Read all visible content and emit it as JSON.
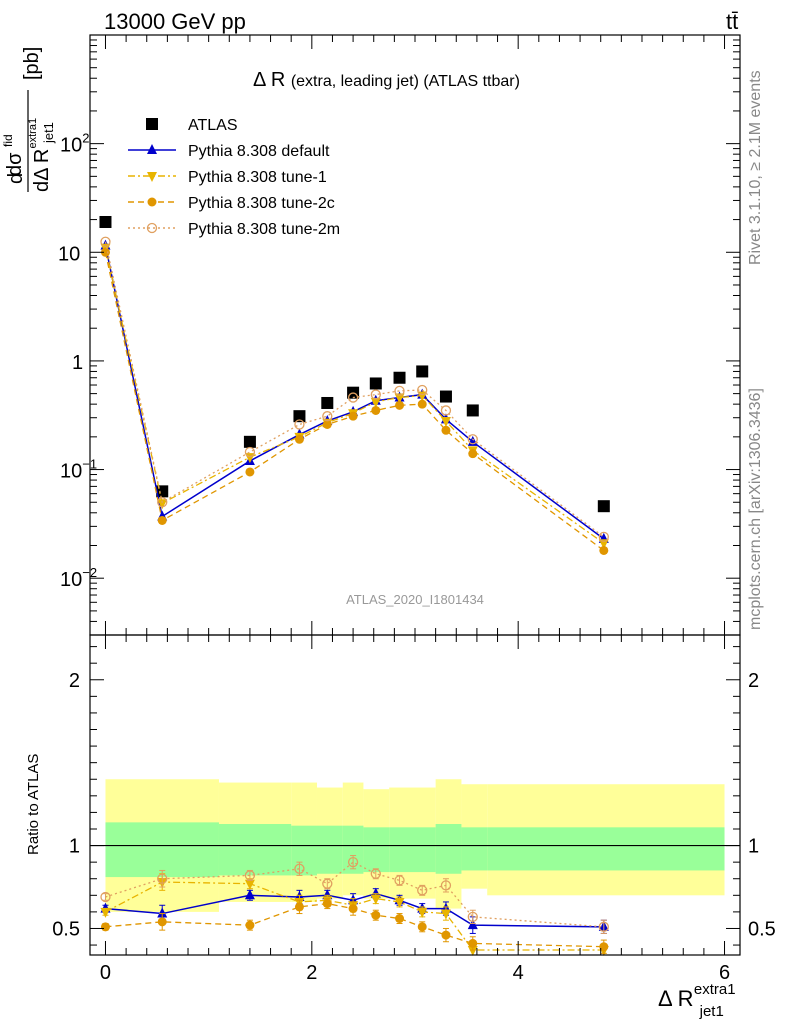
{
  "header": {
    "energy": "13000 GeV pp",
    "process": "tt̄"
  },
  "side_labels": {
    "rivet": "Rivet 3.1.10, ≥ 2.1M events",
    "mcplots": "mcplots.cern.ch [arXiv:1306.3436]"
  },
  "chart_data": [
    {
      "type": "scatter",
      "title": "Δ R (extra, leading jet) (ATLAS ttbar)",
      "title_main": "Δ R",
      "title_sub": "(extra, leading jet) (ATLAS ttbar)",
      "watermark": "ATLAS_2020_I1801434",
      "ylabel": "dσ^fid / dΔ R_jet1^extra1 [pb]",
      "ylabel_parts": {
        "d1": "d",
        "sigma": "dσ",
        "fid": "fid",
        "d2": "dΔ R",
        "sub": "jet1",
        "sup": "extra1",
        "unit": "[pb]"
      },
      "yscale": "log",
      "ylim": [
        0.003,
        1000
      ],
      "xlim": [
        -0.15,
        6.15
      ],
      "y_ticks": [
        {
          "value": 0.01,
          "base": "10",
          "exp": "−2"
        },
        {
          "value": 0.1,
          "base": "10",
          "exp": "−1"
        },
        {
          "value": 1,
          "base": "1",
          "exp": ""
        },
        {
          "value": 10,
          "base": "10",
          "exp": ""
        },
        {
          "value": 100,
          "base": "10",
          "exp": "2"
        }
      ],
      "legend_position": "top-left",
      "x": [
        0.0,
        0.55,
        1.4,
        1.88,
        2.15,
        2.4,
        2.62,
        2.85,
        3.07,
        3.3,
        3.56,
        4.83
      ],
      "series": [
        {
          "name": "ATLAS",
          "style": "data",
          "color": "#000000",
          "marker": "square",
          "values": [
            19,
            0.063,
            0.18,
            0.31,
            0.41,
            0.51,
            0.62,
            0.7,
            0.8,
            0.47,
            0.35,
            0.046
          ]
        },
        {
          "name": "Pythia 8.308 default",
          "style": "solid",
          "color": "#0000cc",
          "marker": "triangle-up",
          "values": [
            11.5,
            0.037,
            0.12,
            0.21,
            0.28,
            0.34,
            0.43,
            0.46,
            0.49,
            0.29,
            0.18,
            0.023
          ]
        },
        {
          "name": "Pythia 8.308 tune-1",
          "style": "dashdot",
          "color": "#e8b400",
          "marker": "triangle-down",
          "values": [
            11.0,
            0.049,
            0.13,
            0.2,
            0.27,
            0.33,
            0.42,
            0.46,
            0.48,
            0.28,
            0.15,
            0.021
          ]
        },
        {
          "name": "Pythia 8.308 tune-2c",
          "style": "dashed",
          "color": "#e09600",
          "marker": "circle",
          "values": [
            10.0,
            0.034,
            0.095,
            0.19,
            0.26,
            0.31,
            0.35,
            0.39,
            0.4,
            0.23,
            0.14,
            0.018
          ]
        },
        {
          "name": "Pythia 8.308 tune-2m",
          "style": "dotted",
          "color": "#e0a060",
          "marker": "open-circle",
          "values": [
            12.5,
            0.05,
            0.145,
            0.26,
            0.31,
            0.46,
            0.49,
            0.53,
            0.54,
            0.35,
            0.19,
            0.024
          ]
        }
      ]
    },
    {
      "type": "scatter",
      "ylabel": "Ratio to ATLAS",
      "xlabel": "Δ R_jet1^extra1",
      "xlabel_parts": {
        "main": "Δ R",
        "sub": "jet1",
        "sup": "extra1"
      },
      "xlim": [
        -0.15,
        6.15
      ],
      "ylim": [
        0.34,
        2.27
      ],
      "x_ticks": [
        0,
        2,
        4,
        6
      ],
      "y_ticks": [
        0.5,
        1,
        2
      ],
      "bands": {
        "edges": [
          0,
          1.1,
          1.8,
          2.05,
          2.3,
          2.5,
          2.75,
          3.2,
          3.45,
          3.7,
          6.0
        ],
        "inner_color": "#99ff99",
        "outer_color": "#ffff99",
        "inner": [
          [
            0.81,
            1.14
          ],
          [
            0.82,
            1.13
          ],
          [
            0.82,
            1.12
          ],
          [
            0.83,
            1.12
          ],
          [
            0.83,
            1.12
          ],
          [
            0.84,
            1.11
          ],
          [
            0.84,
            1.11
          ],
          [
            0.83,
            1.13
          ],
          [
            0.85,
            1.11
          ],
          [
            0.85,
            1.11
          ]
        ],
        "outer": [
          [
            0.6,
            1.4
          ],
          [
            0.66,
            1.38
          ],
          [
            0.66,
            1.38
          ],
          [
            0.68,
            1.35
          ],
          [
            0.7,
            1.38
          ],
          [
            0.68,
            1.34
          ],
          [
            0.68,
            1.35
          ],
          [
            0.62,
            1.4
          ],
          [
            0.74,
            1.37
          ],
          [
            0.7,
            1.37
          ]
        ]
      },
      "series": [
        {
          "name": "Pythia 8.308 default",
          "style": "solid",
          "color": "#0000cc",
          "marker": "triangle-up",
          "values": [
            0.62,
            0.59,
            0.7,
            0.69,
            0.7,
            0.67,
            0.71,
            0.67,
            0.62,
            0.62,
            0.52,
            0.51
          ],
          "errors": [
            0.02,
            0.05,
            0.03,
            0.04,
            0.03,
            0.04,
            0.03,
            0.03,
            0.03,
            0.04,
            0.05,
            0.04
          ]
        },
        {
          "name": "Pythia 8.308 tune-1",
          "style": "dashdot",
          "color": "#e8b400",
          "marker": "triangle-down",
          "values": [
            0.6,
            0.78,
            0.77,
            0.66,
            0.67,
            0.64,
            0.68,
            0.66,
            0.6,
            0.59,
            0.37,
            0.37
          ],
          "errors": [
            0.02,
            0.05,
            0.03,
            0.04,
            0.03,
            0.04,
            0.03,
            0.03,
            0.03,
            0.04,
            0.0,
            0.0
          ]
        },
        {
          "name": "Pythia 8.308 tune-2c",
          "style": "dashed",
          "color": "#e09600",
          "marker": "circle",
          "values": [
            0.51,
            0.54,
            0.52,
            0.63,
            0.65,
            0.62,
            0.58,
            0.56,
            0.51,
            0.46,
            0.41,
            0.39
          ],
          "errors": [
            0.02,
            0.05,
            0.03,
            0.04,
            0.03,
            0.04,
            0.03,
            0.03,
            0.03,
            0.04,
            0.04,
            0.04
          ]
        },
        {
          "name": "Pythia 8.308 tune-2m",
          "style": "dotted",
          "color": "#e0a060",
          "marker": "open-circle",
          "values": [
            0.69,
            0.8,
            0.82,
            0.86,
            0.77,
            0.9,
            0.83,
            0.79,
            0.73,
            0.76,
            0.57,
            0.51
          ],
          "errors": [
            0.02,
            0.05,
            0.03,
            0.04,
            0.03,
            0.04,
            0.03,
            0.03,
            0.03,
            0.04,
            0.04,
            0.04
          ]
        }
      ]
    }
  ]
}
